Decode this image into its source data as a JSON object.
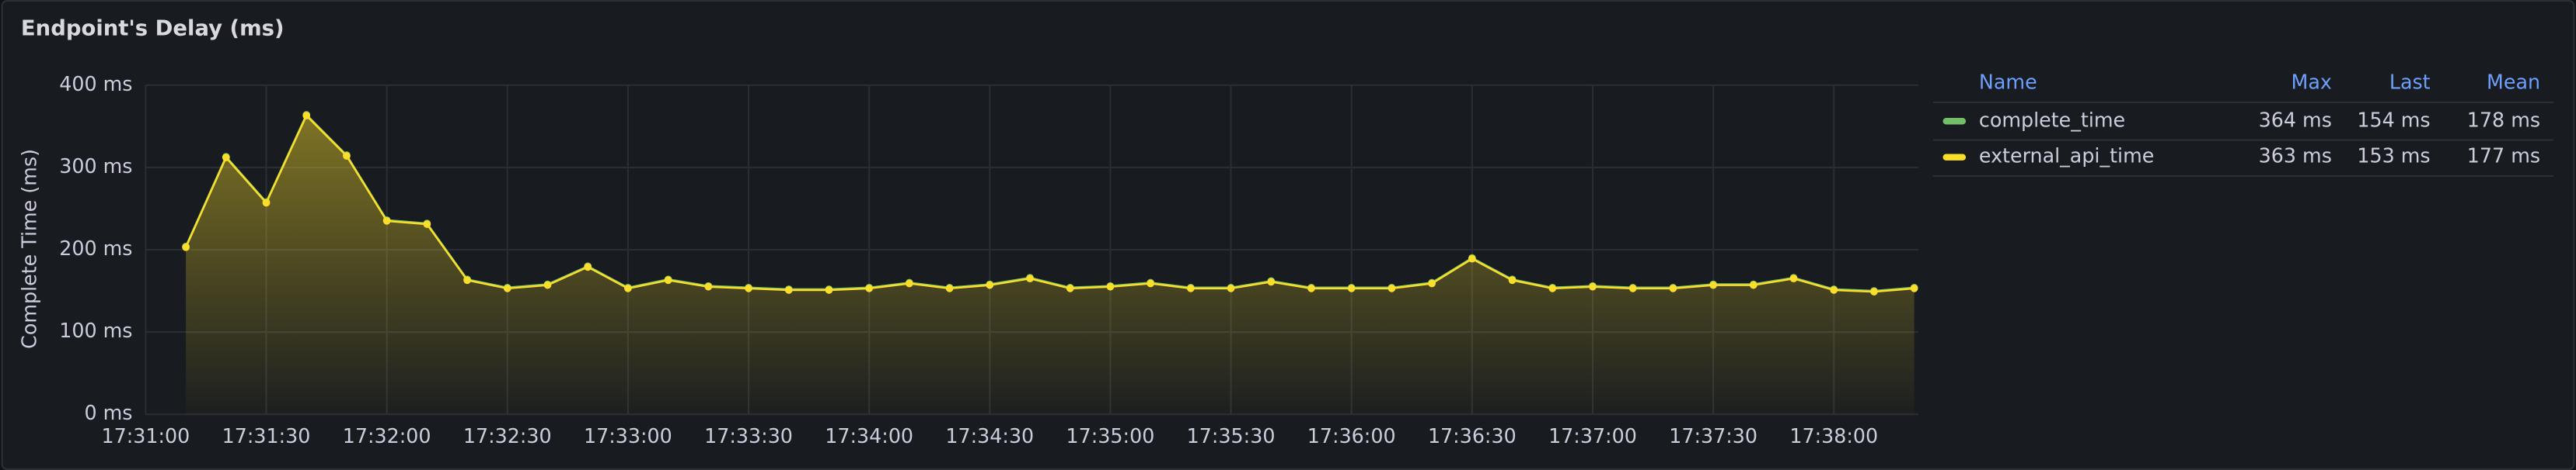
{
  "chart_data": {
    "type": "line",
    "title": "Endpoint's Delay (ms)",
    "y_label": "Complete Time (ms)",
    "x": [
      "17:31:10",
      "17:31:20",
      "17:31:30",
      "17:31:40",
      "17:31:50",
      "17:32:00",
      "17:32:10",
      "17:32:20",
      "17:32:30",
      "17:32:40",
      "17:32:50",
      "17:33:00",
      "17:33:10",
      "17:33:20",
      "17:33:30",
      "17:33:40",
      "17:33:50",
      "17:34:00",
      "17:34:10",
      "17:34:20",
      "17:34:30",
      "17:34:40",
      "17:34:50",
      "17:35:00",
      "17:35:10",
      "17:35:20",
      "17:35:30",
      "17:35:40",
      "17:35:50",
      "17:36:00",
      "17:36:10",
      "17:36:20",
      "17:36:30",
      "17:36:40",
      "17:36:50",
      "17:37:00",
      "17:37:10",
      "17:37:20",
      "17:37:30",
      "17:37:40",
      "17:37:50",
      "17:38:00",
      "17:38:10",
      "17:38:20"
    ],
    "series": [
      {
        "name": "complete_time",
        "color": "#73bf69",
        "stats": [
          "364 ms",
          "154 ms",
          "178 ms"
        ],
        "values": [
          204,
          313,
          258,
          364,
          315,
          236,
          232,
          164,
          154,
          158,
          180,
          154,
          164,
          156,
          154,
          152,
          152,
          154,
          160,
          154,
          158,
          166,
          154,
          156,
          160,
          154,
          154,
          162,
          154,
          154,
          154,
          160,
          190,
          164,
          154,
          156,
          154,
          154,
          158,
          158,
          166,
          152,
          150,
          154
        ]
      },
      {
        "name": "external_api_time",
        "color": "#fade2a",
        "stats": [
          "363 ms",
          "153 ms",
          "177 ms"
        ],
        "values": [
          203,
          312,
          257,
          363,
          314,
          235,
          231,
          163,
          153,
          157,
          179,
          153,
          163,
          155,
          153,
          151,
          151,
          153,
          159,
          153,
          157,
          165,
          153,
          155,
          159,
          153,
          153,
          161,
          153,
          153,
          153,
          159,
          189,
          163,
          153,
          155,
          153,
          153,
          157,
          157,
          165,
          151,
          149,
          153
        ]
      }
    ],
    "legend_columns": [
      "Name",
      "Max",
      "Last",
      "Mean"
    ],
    "xlim": [
      "17:31:00",
      "17:38:21"
    ],
    "xticks": [
      "17:31:00",
      "17:31:30",
      "17:32:00",
      "17:32:30",
      "17:33:00",
      "17:33:30",
      "17:34:00",
      "17:34:30",
      "17:35:00",
      "17:35:30",
      "17:36:00",
      "17:36:30",
      "17:37:00",
      "17:37:30",
      "17:38:00"
    ],
    "ylim": [
      0,
      400
    ],
    "yticks": [
      {
        "value": 0,
        "label": "0 ms"
      },
      {
        "value": 100,
        "label": "100 ms"
      },
      {
        "value": 200,
        "label": "200 ms"
      },
      {
        "value": 300,
        "label": "300 ms"
      },
      {
        "value": 400,
        "label": "400 ms"
      }
    ],
    "grid": true
  }
}
